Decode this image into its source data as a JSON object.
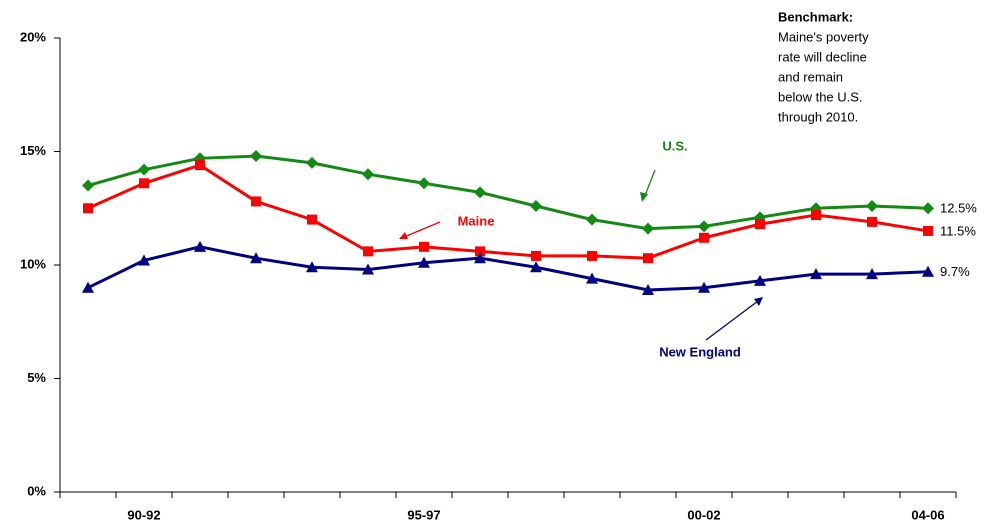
{
  "chart_data": {
    "type": "line",
    "categories": [
      null,
      "90-92",
      null,
      null,
      null,
      null,
      "95-97",
      null,
      null,
      null,
      null,
      "00-02",
      null,
      null,
      null,
      "04-06"
    ],
    "series": [
      {
        "name": "U.S.",
        "color": "#138a13",
        "marker": "diamond",
        "values": [
          13.5,
          14.2,
          14.7,
          14.8,
          14.5,
          14.0,
          13.6,
          13.2,
          12.6,
          12.0,
          11.6,
          11.7,
          12.1,
          12.5,
          12.6,
          12.5
        ],
        "value_labels": [
          null,
          null,
          null,
          null,
          null,
          null,
          null,
          null,
          null,
          null,
          null,
          null,
          null,
          null,
          null,
          "12.5%"
        ]
      },
      {
        "name": "Maine",
        "color": "#ff0000",
        "marker": "square",
        "values": [
          12.5,
          13.6,
          14.4,
          12.8,
          12.0,
          10.6,
          10.8,
          10.6,
          10.4,
          10.4,
          10.3,
          11.2,
          11.8,
          12.2,
          11.9,
          11.5
        ],
        "value_labels": [
          null,
          null,
          null,
          null,
          null,
          null,
          null,
          null,
          null,
          null,
          null,
          null,
          null,
          null,
          null,
          "11.5%"
        ]
      },
      {
        "name": "New England",
        "color": "#000080",
        "marker": "triangle",
        "values": [
          9.0,
          10.2,
          10.8,
          10.3,
          9.9,
          9.8,
          10.1,
          10.3,
          9.9,
          9.4,
          8.9,
          9.0,
          9.3,
          9.6,
          9.6,
          9.7
        ],
        "value_labels": [
          null,
          null,
          null,
          null,
          null,
          null,
          null,
          null,
          null,
          null,
          null,
          null,
          null,
          null,
          null,
          "9.7%"
        ]
      }
    ],
    "ylim": [
      0,
      20
    ],
    "yticks": [
      {
        "value": 0,
        "label": "0%"
      },
      {
        "value": 5,
        "label": "5%"
      },
      {
        "value": 10,
        "label": "10%"
      },
      {
        "value": 15,
        "label": "15%"
      },
      {
        "value": 20,
        "label": "20%"
      }
    ],
    "grid": false,
    "annotation": {
      "title": "Benchmark:",
      "lines": [
        "Maine's poverty",
        "rate will decline",
        "and remain",
        "below the U.S.",
        "through 2010."
      ]
    }
  }
}
